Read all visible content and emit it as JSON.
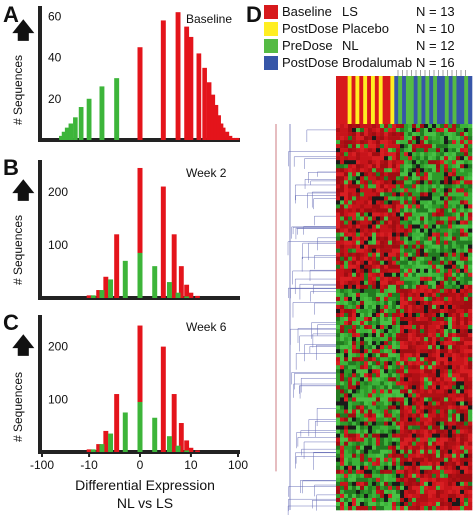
{
  "panels": {
    "a": "A",
    "b": "B",
    "c": "C",
    "d": "D"
  },
  "axis": {
    "ylabel": "# Sequences",
    "xtitle_line1": "Differential Expression",
    "xtitle_line2": "NL vs LS"
  },
  "colors": {
    "red": "#e4141b",
    "green": "#3db53a",
    "yellow": "#ffec1a",
    "blue": "#3b57a7",
    "axis": "#222222"
  },
  "legend": [
    {
      "group": "Baseline",
      "treatment": "LS",
      "n": "N = 13",
      "color": "#d7191c"
    },
    {
      "group": "PostDose",
      "treatment": "Placebo",
      "n": "N = 10",
      "color": "#ffee22"
    },
    {
      "group": "PreDose",
      "treatment": "NL",
      "n": "N = 12",
      "color": "#55bb44"
    },
    {
      "group": "PostDose",
      "treatment": "Brodalumab",
      "n": "N = 16",
      "color": "#3656a8"
    }
  ],
  "chart_data": [
    {
      "type": "bar",
      "title": "Baseline",
      "xlabel": "",
      "ylabel": "# Sequences",
      "xlim": [
        -110,
        110
      ],
      "ylim": [
        0,
        65
      ],
      "yticks": [
        20,
        40,
        60
      ],
      "series": [
        {
          "color": "green",
          "x": [
            -40,
            -35,
            -30,
            -25,
            -20,
            -15,
            -10,
            -5,
            -2
          ],
          "values": [
            2,
            4,
            6,
            8,
            11,
            16,
            20,
            26,
            30
          ]
        },
        {
          "color": "red",
          "x": [
            0,
            2,
            5,
            8,
            10,
            15,
            20,
            25,
            30,
            35,
            40,
            45,
            50,
            60,
            70,
            80,
            90,
            100
          ],
          "values": [
            45,
            58,
            62,
            55,
            50,
            42,
            35,
            28,
            22,
            17,
            12,
            8,
            6,
            4,
            2,
            1,
            1,
            1
          ]
        }
      ]
    },
    {
      "type": "bar",
      "title": "Week 2",
      "xlabel": "",
      "ylabel": "# Sequences",
      "xlim": [
        -110,
        110
      ],
      "ylim": [
        0,
        260
      ],
      "yticks": [
        100,
        200
      ],
      "series": [
        {
          "color": "red",
          "x": [
            -10,
            -6,
            -4,
            -2,
            0,
            2,
            4,
            6,
            8,
            10,
            14
          ],
          "values": [
            5,
            15,
            40,
            120,
            245,
            210,
            120,
            60,
            25,
            10,
            4
          ]
        },
        {
          "color": "green",
          "x": [
            -8,
            -5,
            -3,
            -1,
            0,
            1,
            3,
            5,
            8
          ],
          "values": [
            5,
            15,
            35,
            70,
            85,
            60,
            30,
            10,
            3
          ]
        }
      ]
    },
    {
      "type": "bar",
      "title": "Week 6",
      "xlabel": "",
      "ylabel": "# Sequences",
      "xlim": [
        -110,
        110
      ],
      "ylim": [
        0,
        260
      ],
      "yticks": [
        100,
        200
      ],
      "series": [
        {
          "color": "red",
          "x": [
            -10,
            -6,
            -4,
            -2,
            0,
            2,
            4,
            6,
            8,
            10,
            14
          ],
          "values": [
            5,
            15,
            40,
            110,
            240,
            200,
            110,
            55,
            22,
            8,
            3
          ]
        },
        {
          "color": "green",
          "x": [
            -8,
            -5,
            -3,
            -1,
            0,
            1,
            3,
            5,
            8
          ],
          "values": [
            5,
            15,
            35,
            75,
            95,
            65,
            30,
            12,
            3
          ]
        }
      ],
      "xticks": [
        "-100",
        "-10",
        "0",
        "10",
        "100"
      ]
    }
  ]
}
